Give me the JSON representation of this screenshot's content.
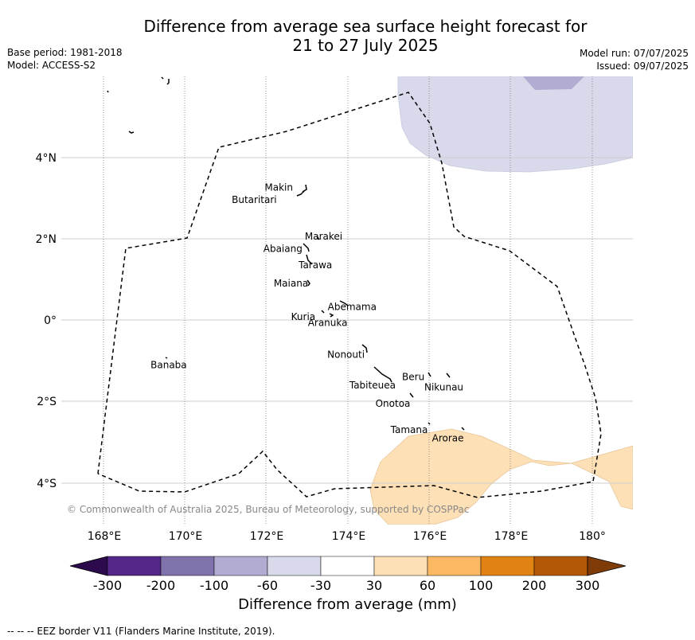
{
  "title": {
    "line1": "Difference from average sea surface height forecast for",
    "line2": "21 to 27 July 2025"
  },
  "meta": {
    "base_period": "Base period: 1981-2018",
    "model": "Model: ACCESS-S2",
    "model_run": "Model run: 07/07/2025",
    "issued": "Issued: 09/07/2025"
  },
  "map": {
    "lon_range": [
      167,
      181
    ],
    "lat_range": [
      -5,
      6
    ],
    "lon_ticks": [
      {
        "value": 168,
        "label": "168°E"
      },
      {
        "value": 170,
        "label": "170°E"
      },
      {
        "value": 172,
        "label": "172°E"
      },
      {
        "value": 174,
        "label": "174°E"
      },
      {
        "value": 176,
        "label": "176°E"
      },
      {
        "value": 178,
        "label": "178°E"
      },
      {
        "value": 180,
        "label": "180°"
      }
    ],
    "lat_ticks": [
      {
        "value": 4,
        "label": "4°N"
      },
      {
        "value": 2,
        "label": "2°N"
      },
      {
        "value": 0,
        "label": "0°"
      },
      {
        "value": -2,
        "label": "2°S"
      },
      {
        "value": -4,
        "label": "4°S"
      }
    ],
    "copyright": "© Commonwealth of Australia 2025, Bureau of Meteorology, supported by COSPPac",
    "places": [
      {
        "name": "Makin",
        "lon": 172.3,
        "lat": 3.25
      },
      {
        "name": "Butaritari",
        "lon": 171.7,
        "lat": 2.95
      },
      {
        "name": "Marakei",
        "lon": 173.4,
        "lat": 2.05
      },
      {
        "name": "Abaiang",
        "lon": 172.4,
        "lat": 1.75
      },
      {
        "name": "Tarawa",
        "lon": 173.2,
        "lat": 1.35
      },
      {
        "name": "Maiana",
        "lon": 172.6,
        "lat": 0.9
      },
      {
        "name": "Abemama",
        "lon": 174.1,
        "lat": 0.32
      },
      {
        "name": "Kuria",
        "lon": 172.9,
        "lat": 0.08
      },
      {
        "name": "Aranuka",
        "lon": 173.5,
        "lat": -0.07
      },
      {
        "name": "Nonouti",
        "lon": 173.95,
        "lat": -0.85
      },
      {
        "name": "Banaba",
        "lon": 169.6,
        "lat": -1.1
      },
      {
        "name": "Beru",
        "lon": 175.6,
        "lat": -1.4
      },
      {
        "name": "Tabiteuea",
        "lon": 174.6,
        "lat": -1.6
      },
      {
        "name": "Nikunau",
        "lon": 176.35,
        "lat": -1.65
      },
      {
        "name": "Onotoa",
        "lon": 175.1,
        "lat": -2.05
      },
      {
        "name": "Tamana",
        "lon": 175.5,
        "lat": -2.7
      },
      {
        "name": "Arorae",
        "lon": 176.45,
        "lat": -2.9
      }
    ],
    "anomaly_regions": [
      {
        "name": "negative-anomaly-region",
        "category": "-60 to -30"
      },
      {
        "name": "negative-anomaly-core",
        "category": "-100 to -60"
      },
      {
        "name": "positive-anomaly-region",
        "category": "30 to 60"
      }
    ]
  },
  "colorbar": {
    "label": "Difference from average (mm)",
    "ticks": [
      "-300",
      "-200",
      "-100",
      "-60",
      "-30",
      "30",
      "60",
      "100",
      "200",
      "300"
    ],
    "colors": {
      "below": "#2d0a4e",
      "bins": [
        "#542788",
        "#8073ac",
        "#b2abd2",
        "#d8daeb",
        "#ffffff",
        "#fee0b6",
        "#fdb863",
        "#e08214",
        "#b35806"
      ],
      "above": "#7f3b08"
    }
  },
  "footnote": "--  --  -- EEZ border V11 (Flanders Marine Institute, 2019)."
}
